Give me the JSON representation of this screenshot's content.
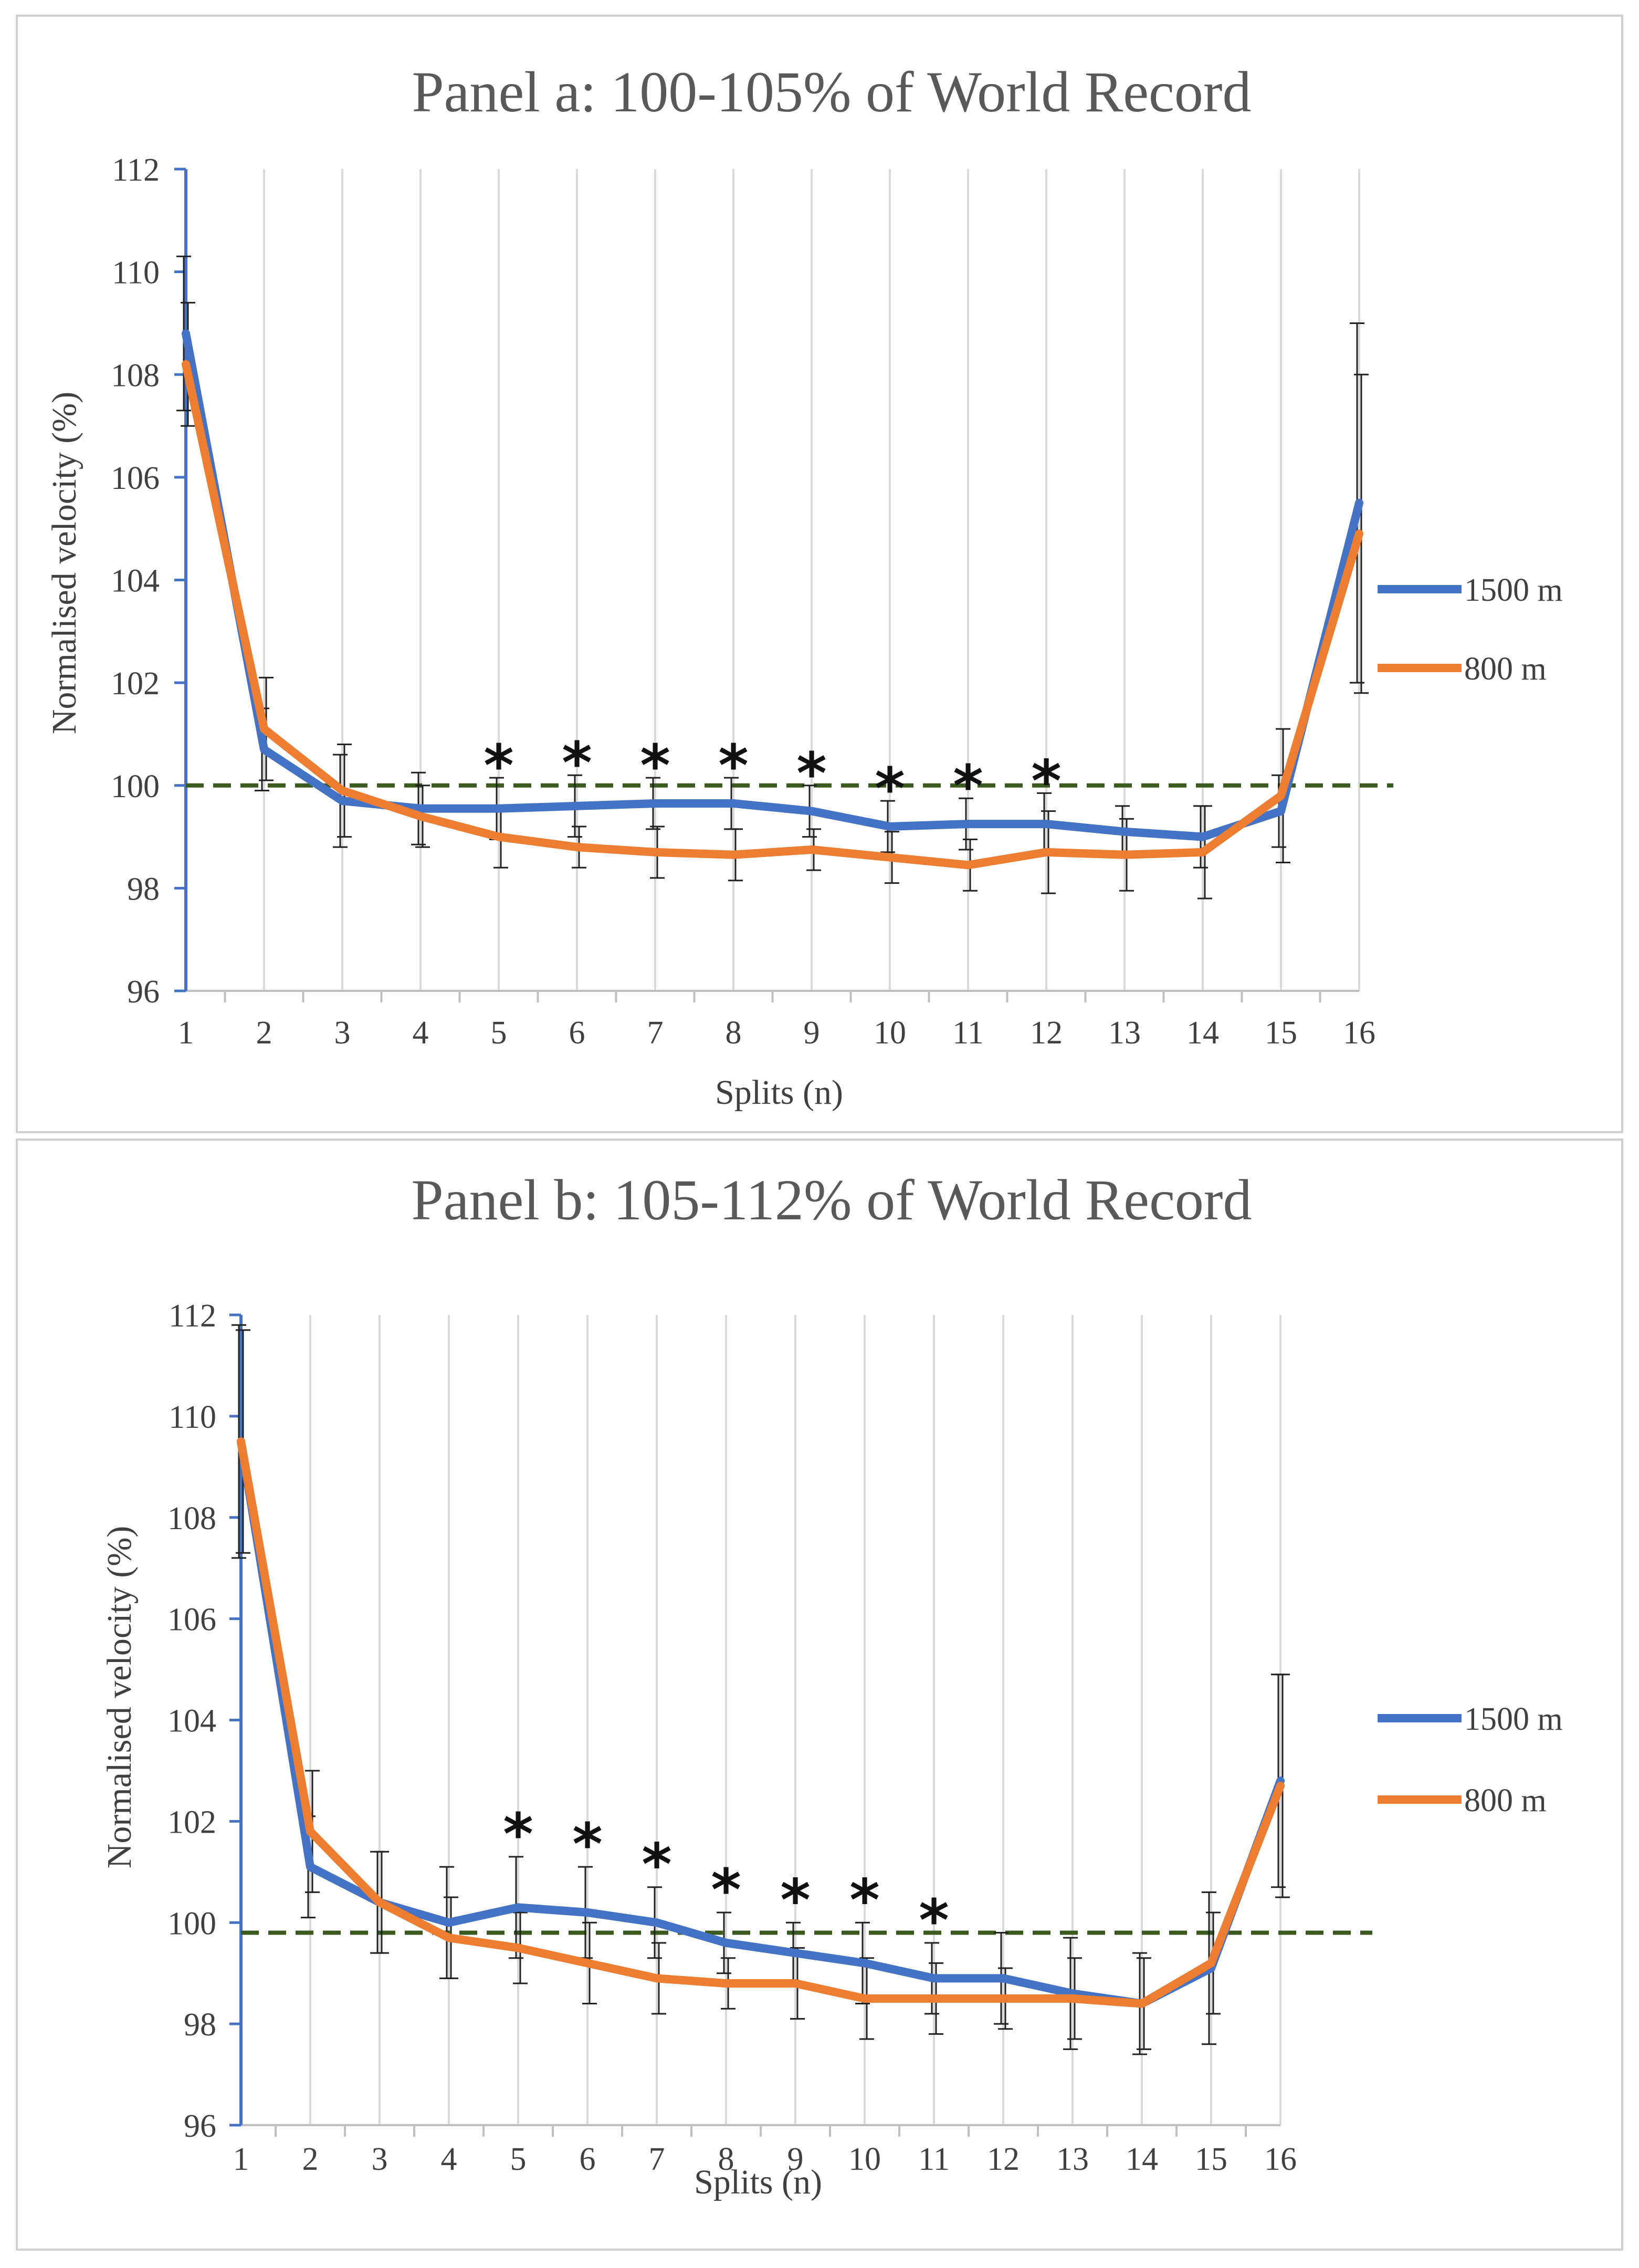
{
  "colors": {
    "series_1500": "#4472C4",
    "series_800": "#ED7D31",
    "reference_line": "#3A5A20",
    "gridline": "#d9d9d9",
    "y_axis": "#4472C4",
    "error_bar": "#202020"
  },
  "legend": {
    "s1500": "1500 m",
    "s800": "800 m"
  },
  "chart_data": [
    {
      "type": "line",
      "title": "Panel a: 100-105% of World Record",
      "xlabel": "Splits (n)",
      "ylabel": "Normalised velocity (%)",
      "categories": [
        "1",
        "2",
        "3",
        "4",
        "5",
        "6",
        "7",
        "8",
        "9",
        "10",
        "11",
        "12",
        "13",
        "14",
        "15",
        "16"
      ],
      "ylim": [
        96,
        112
      ],
      "yticks": [
        "96",
        "98",
        "100",
        "102",
        "104",
        "106",
        "108",
        "110",
        "112"
      ],
      "reference_line": 100,
      "grid": "vertical",
      "legend_position": "right",
      "significance_marker": "*",
      "significant_splits": [
        5,
        6,
        7,
        8,
        9,
        10,
        11,
        12
      ],
      "series": [
        {
          "name": "1500 m",
          "values": [
            108.8,
            100.7,
            99.7,
            99.55,
            99.55,
            99.6,
            99.65,
            99.65,
            99.5,
            99.2,
            99.25,
            99.25,
            99.1,
            99.0,
            99.5,
            105.5
          ],
          "error": [
            1.5,
            0.8,
            0.9,
            0.7,
            0.6,
            0.6,
            0.5,
            0.5,
            0.5,
            0.5,
            0.5,
            0.6,
            0.5,
            0.6,
            0.7,
            3.5
          ]
        },
        {
          "name": "800 m",
          "values": [
            108.2,
            101.1,
            99.9,
            99.4,
            99.0,
            98.8,
            98.7,
            98.65,
            98.75,
            98.6,
            98.45,
            98.7,
            98.65,
            98.7,
            99.8,
            104.9
          ],
          "error": [
            1.2,
            1.0,
            0.9,
            0.6,
            0.6,
            0.4,
            0.5,
            0.5,
            0.4,
            0.5,
            0.5,
            0.8,
            0.7,
            0.9,
            1.3,
            3.1
          ]
        }
      ]
    },
    {
      "type": "line",
      "title": "Panel b: 105-112% of World Record",
      "xlabel": "Splits (n)",
      "ylabel": "Normalised velocity (%)",
      "categories": [
        "1",
        "2",
        "3",
        "4",
        "5",
        "6",
        "7",
        "8",
        "9",
        "10",
        "11",
        "12",
        "13",
        "14",
        "15",
        "16"
      ],
      "ylim": [
        96,
        112
      ],
      "yticks": [
        "96",
        "98",
        "100",
        "102",
        "104",
        "106",
        "108",
        "110",
        "112"
      ],
      "reference_line": 99.8,
      "grid": "vertical",
      "legend_position": "right",
      "significance_marker": "*",
      "significant_splits": [
        5,
        6,
        7,
        8,
        9,
        10,
        11
      ],
      "series": [
        {
          "name": "1500 m",
          "values": [
            109.5,
            101.1,
            100.4,
            100.0,
            100.3,
            100.2,
            100.0,
            99.6,
            99.4,
            99.2,
            98.9,
            98.9,
            98.6,
            98.4,
            99.1,
            102.8
          ],
          "error": [
            2.3,
            1.0,
            1.0,
            1.1,
            1.0,
            0.9,
            0.7,
            0.6,
            0.6,
            0.8,
            0.7,
            0.9,
            1.1,
            1.0,
            1.5,
            2.1
          ]
        },
        {
          "name": "800 m",
          "values": [
            109.5,
            101.8,
            100.4,
            99.7,
            99.5,
            99.2,
            98.9,
            98.8,
            98.8,
            98.5,
            98.5,
            98.5,
            98.5,
            98.4,
            99.2,
            102.7
          ],
          "error": [
            2.2,
            1.2,
            1.0,
            0.8,
            0.7,
            0.8,
            0.7,
            0.5,
            0.7,
            0.8,
            0.7,
            0.6,
            0.8,
            0.9,
            1.0,
            2.2
          ]
        }
      ]
    }
  ]
}
